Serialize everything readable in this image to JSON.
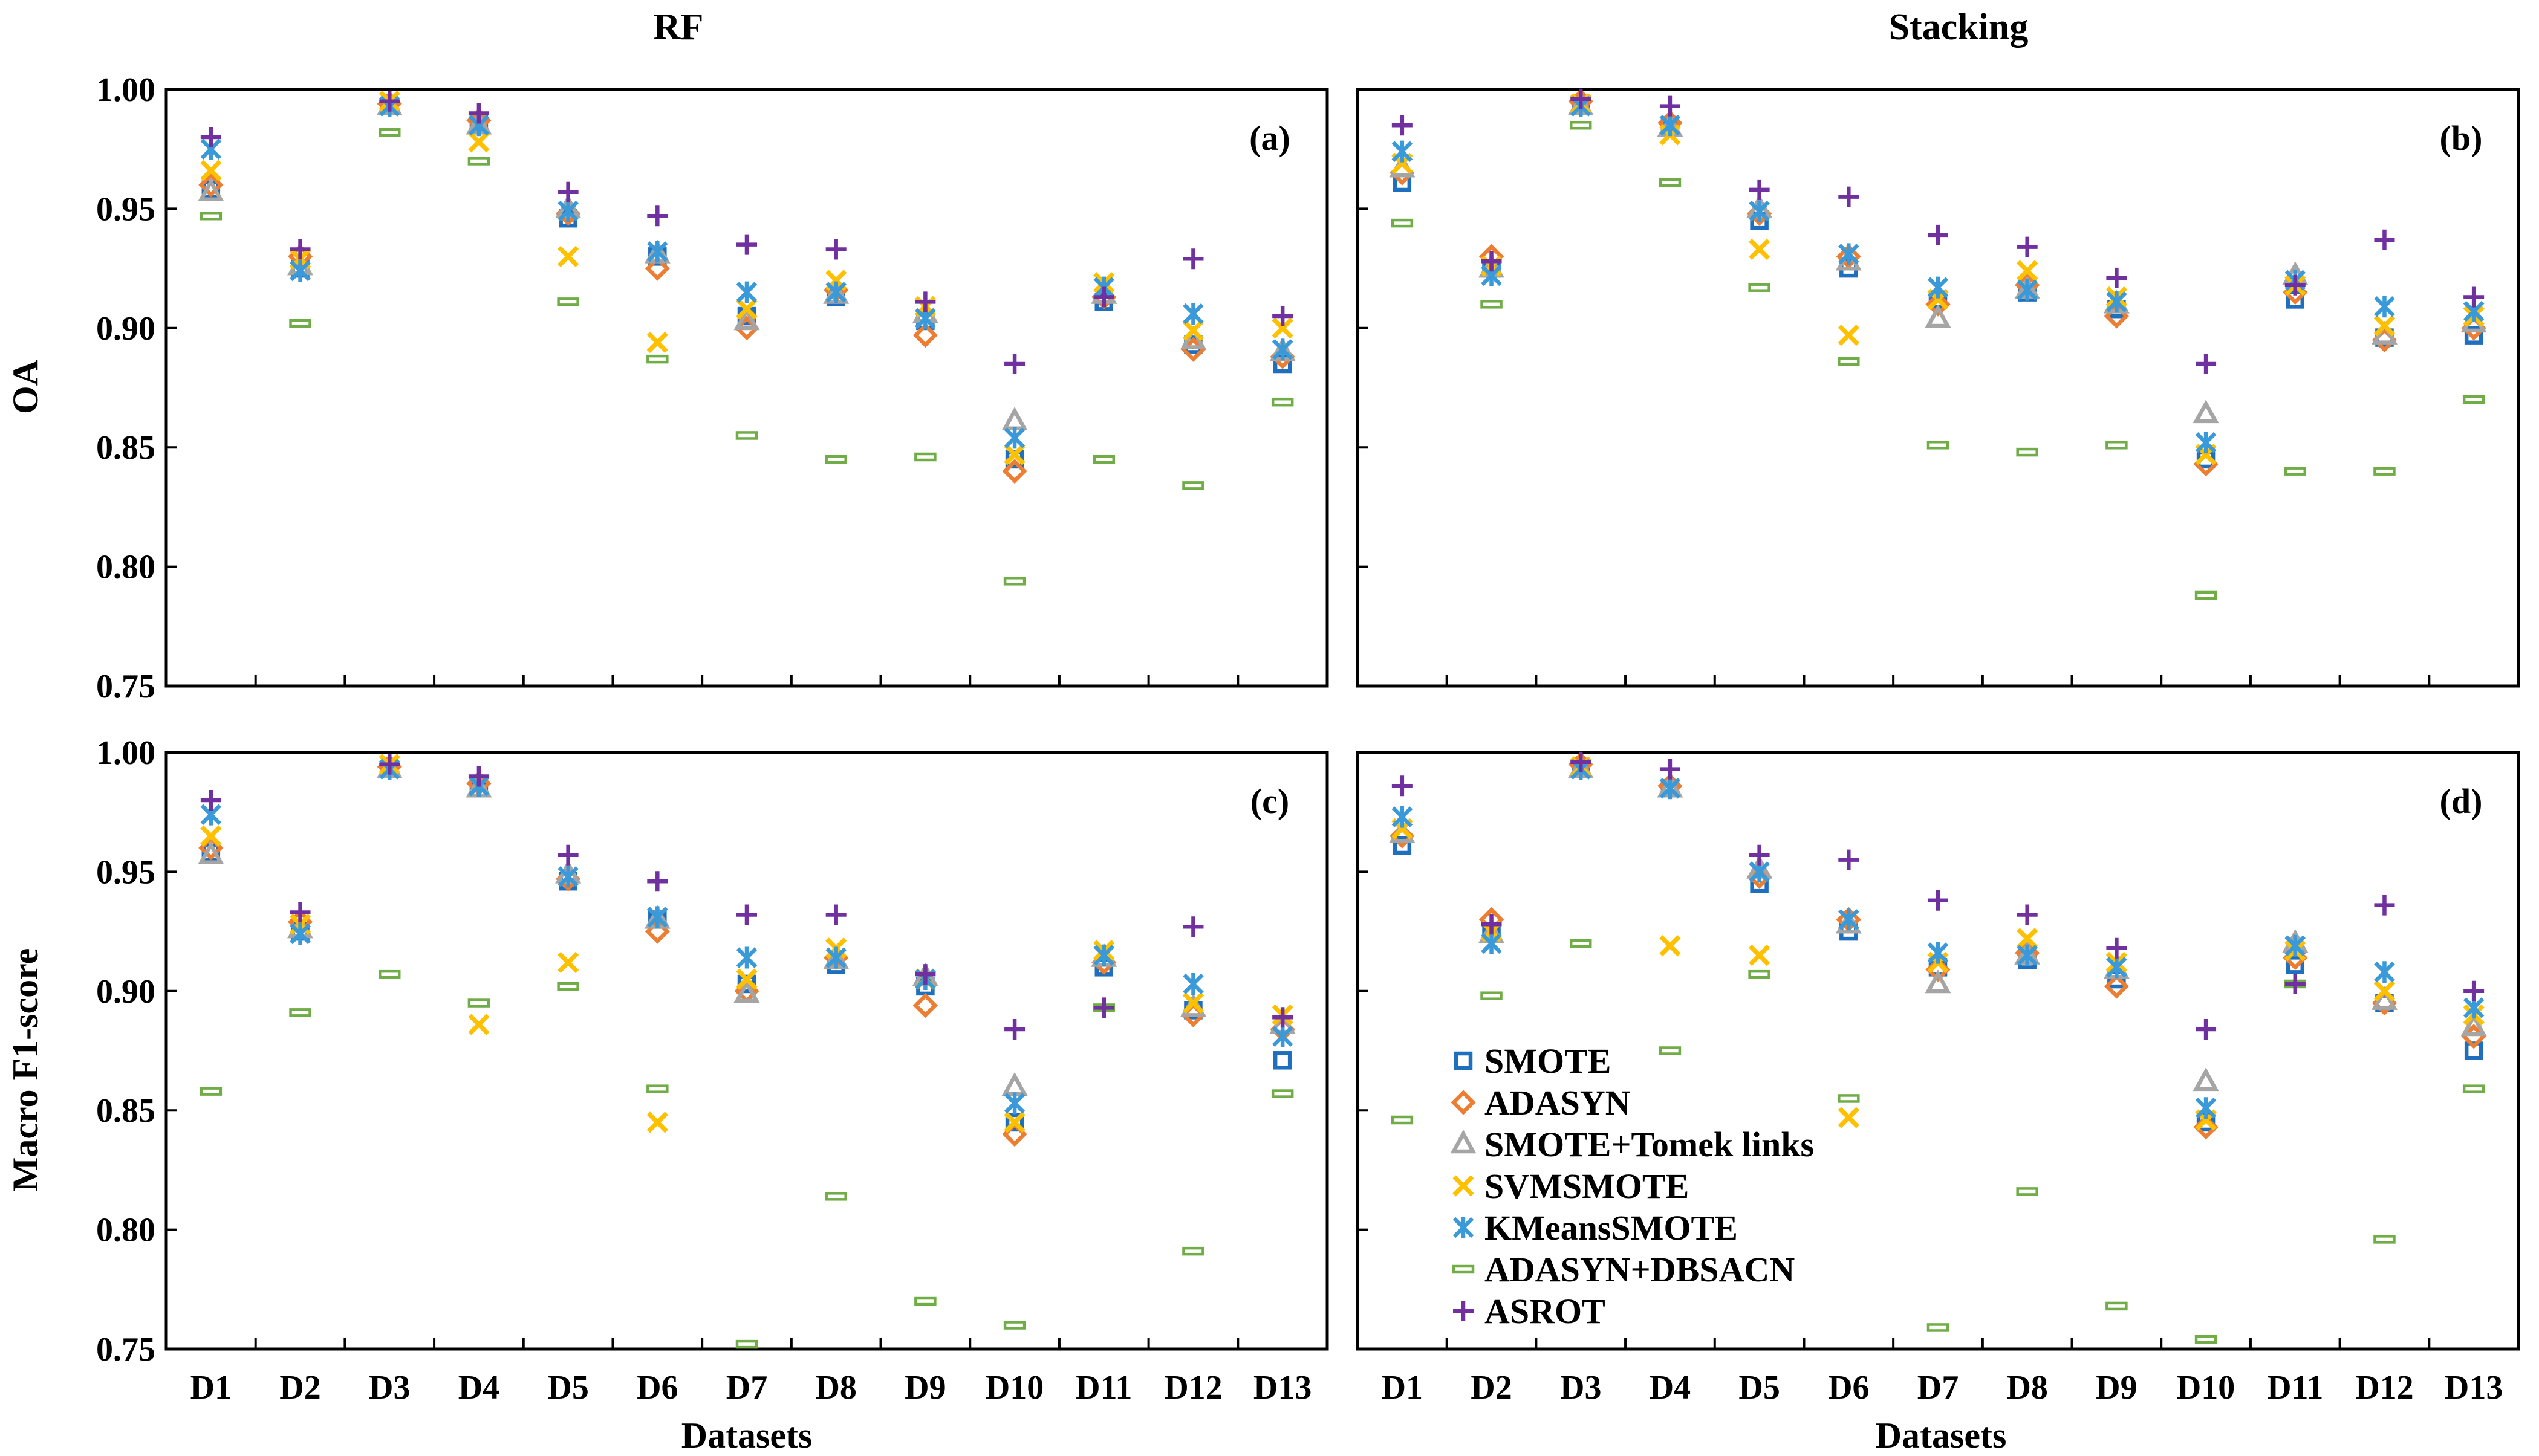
{
  "column_titles": [
    "RF",
    "Stacking"
  ],
  "x_axis_title": "Datasets",
  "y_axis_titles": [
    "OA",
    "Macro F1-score"
  ],
  "chart_data": {
    "type": "scatter",
    "categories": [
      "D1",
      "D2",
      "D3",
      "D4",
      "D5",
      "D6",
      "D7",
      "D8",
      "D9",
      "D10",
      "D11",
      "D12",
      "D13"
    ],
    "xlabel": "Datasets",
    "ylim": [
      0.75,
      1.0
    ],
    "yticks": [
      "0.75",
      "0.80",
      "0.85",
      "0.90",
      "0.95",
      "1.00"
    ],
    "legend": {
      "placement": "bottom-left of panel (d)",
      "entries": [
        {
          "name": "SMOTE",
          "marker": "square",
          "color": "#1f6fbf"
        },
        {
          "name": "ADASYN",
          "marker": "diamond",
          "color": "#ec7d31"
        },
        {
          "name": "SMOTE+Tomek links",
          "marker": "triangle",
          "color": "#a5a5a5"
        },
        {
          "name": "SVMSMOTE",
          "marker": "x",
          "color": "#ffc000"
        },
        {
          "name": "KMeansSMOTE",
          "marker": "asterisk",
          "color": "#3a9ad9"
        },
        {
          "name": "ADASYN+DBSACN",
          "marker": "dash",
          "color": "#70ad47"
        },
        {
          "name": "ASROT",
          "marker": "plus",
          "color": "#7030a0"
        }
      ]
    },
    "panels": [
      {
        "label": "(a)",
        "title": "RF",
        "ylabel": "OA",
        "series": [
          {
            "name": "SMOTE",
            "values": [
              0.958,
              0.925,
              0.993,
              0.986,
              0.946,
              0.93,
              0.905,
              0.913,
              0.903,
              0.845,
              0.911,
              0.893,
              0.885
            ]
          },
          {
            "name": "ADASYN",
            "values": [
              0.96,
              0.93,
              0.994,
              0.987,
              0.948,
              0.925,
              0.9,
              0.916,
              0.897,
              0.84,
              0.913,
              0.891,
              0.888
            ]
          },
          {
            "name": "SMOTE+Tomek links",
            "values": [
              0.957,
              0.926,
              0.993,
              0.985,
              0.95,
              0.931,
              0.903,
              0.914,
              0.906,
              0.861,
              0.914,
              0.895,
              0.89
            ]
          },
          {
            "name": "SVMSMOTE",
            "values": [
              0.966,
              0.929,
              0.995,
              0.978,
              0.93,
              0.894,
              0.908,
              0.92,
              0.909,
              0.847,
              0.919,
              0.899,
              0.9
            ]
          },
          {
            "name": "KMeansSMOTE",
            "values": [
              0.975,
              0.924,
              0.993,
              0.985,
              0.949,
              0.932,
              0.915,
              0.915,
              0.904,
              0.854,
              0.917,
              0.906,
              0.891
            ]
          },
          {
            "name": "ADASYN+DBSACN",
            "values": [
              0.947,
              0.902,
              0.982,
              0.97,
              0.911,
              0.887,
              0.855,
              0.845,
              0.846,
              0.794,
              0.845,
              0.834,
              0.869
            ]
          },
          {
            "name": "ASROT",
            "values": [
              0.98,
              0.933,
              0.995,
              0.99,
              0.957,
              0.947,
              0.935,
              0.933,
              0.911,
              0.885,
              0.913,
              0.929,
              0.905
            ]
          }
        ]
      },
      {
        "label": "(b)",
        "title": "Stacking",
        "ylabel": "",
        "series": [
          {
            "name": "SMOTE",
            "values": [
              0.961,
              0.925,
              0.993,
              0.985,
              0.945,
              0.925,
              0.912,
              0.915,
              0.908,
              0.845,
              0.912,
              0.896,
              0.897
            ]
          },
          {
            "name": "ADASYN",
            "values": [
              0.965,
              0.93,
              0.995,
              0.986,
              0.948,
              0.93,
              0.91,
              0.918,
              0.905,
              0.843,
              0.915,
              0.895,
              0.9
            ]
          },
          {
            "name": "SMOTE+Tomek links",
            "values": [
              0.967,
              0.925,
              0.993,
              0.984,
              0.95,
              0.928,
              0.904,
              0.916,
              0.91,
              0.864,
              0.922,
              0.897,
              0.902
            ]
          },
          {
            "name": "SVMSMOTE",
            "values": [
              0.969,
              0.926,
              0.994,
              0.981,
              0.933,
              0.897,
              0.912,
              0.924,
              0.913,
              0.847,
              0.918,
              0.901,
              0.905
            ]
          },
          {
            "name": "KMeansSMOTE",
            "values": [
              0.974,
              0.922,
              0.993,
              0.985,
              0.949,
              0.931,
              0.917,
              0.916,
              0.911,
              0.852,
              0.92,
              0.909,
              0.907
            ]
          },
          {
            "name": "ADASYN+DBSACN",
            "values": [
              0.944,
              0.91,
              0.985,
              0.961,
              0.917,
              0.886,
              0.851,
              0.848,
              0.851,
              0.788,
              0.84,
              0.84,
              0.87
            ]
          },
          {
            "name": "ASROT",
            "values": [
              0.985,
              0.928,
              0.996,
              0.993,
              0.958,
              0.955,
              0.939,
              0.934,
              0.921,
              0.885,
              0.918,
              0.937,
              0.913
            ]
          }
        ]
      },
      {
        "label": "(c)",
        "title": "",
        "ylabel": "Macro F1-score",
        "series": [
          {
            "name": "SMOTE",
            "values": [
              0.958,
              0.925,
              0.993,
              0.985,
              0.946,
              0.93,
              0.903,
              0.911,
              0.902,
              0.845,
              0.91,
              0.892,
              0.871
            ]
          },
          {
            "name": "ADASYN",
            "values": [
              0.96,
              0.929,
              0.994,
              0.987,
              0.947,
              0.925,
              0.9,
              0.914,
              0.894,
              0.84,
              0.912,
              0.89,
              0.884
            ]
          },
          {
            "name": "SMOTE+Tomek links",
            "values": [
              0.957,
              0.926,
              0.993,
              0.985,
              0.949,
              0.93,
              0.899,
              0.913,
              0.906,
              0.86,
              0.914,
              0.893,
              0.886
            ]
          },
          {
            "name": "SVMSMOTE",
            "values": [
              0.965,
              0.928,
              0.995,
              0.886,
              0.912,
              0.845,
              0.905,
              0.918,
              0.905,
              0.845,
              0.917,
              0.895,
              0.89
            ]
          },
          {
            "name": "KMeansSMOTE",
            "values": [
              0.974,
              0.924,
              0.993,
              0.986,
              0.948,
              0.931,
              0.914,
              0.914,
              0.905,
              0.853,
              0.915,
              0.903,
              0.881
            ]
          },
          {
            "name": "ADASYN+DBSACN",
            "values": [
              0.858,
              0.891,
              0.907,
              0.895,
              0.902,
              0.859,
              0.752,
              0.814,
              0.77,
              0.76,
              0.893,
              0.791,
              0.857
            ]
          },
          {
            "name": "ASROT",
            "values": [
              0.98,
              0.933,
              0.995,
              0.99,
              0.957,
              0.946,
              0.932,
              0.932,
              0.907,
              0.884,
              0.893,
              0.927,
              0.889
            ]
          }
        ]
      },
      {
        "label": "(d)",
        "title": "",
        "ylabel": "",
        "series": [
          {
            "name": "SMOTE",
            "values": [
              0.961,
              0.924,
              0.993,
              0.985,
              0.945,
              0.925,
              0.91,
              0.913,
              0.905,
              0.845,
              0.911,
              0.895,
              0.875
            ]
          },
          {
            "name": "ADASYN",
            "values": [
              0.965,
              0.93,
              0.995,
              0.986,
              0.948,
              0.93,
              0.909,
              0.916,
              0.902,
              0.843,
              0.914,
              0.895,
              0.881
            ]
          },
          {
            "name": "SMOTE+Tomek links",
            "values": [
              0.966,
              0.924,
              0.993,
              0.985,
              0.951,
              0.928,
              0.903,
              0.915,
              0.909,
              0.862,
              0.92,
              0.896,
              0.885
            ]
          },
          {
            "name": "SVMSMOTE",
            "values": [
              0.968,
              0.925,
              0.994,
              0.919,
              0.915,
              0.847,
              0.912,
              0.922,
              0.912,
              0.846,
              0.917,
              0.9,
              0.89
            ]
          },
          {
            "name": "KMeansSMOTE",
            "values": [
              0.973,
              0.92,
              0.993,
              0.985,
              0.95,
              0.93,
              0.916,
              0.915,
              0.91,
              0.851,
              0.919,
              0.908,
              0.893
            ]
          },
          {
            "name": "ADASYN+DBSACN",
            "values": [
              0.846,
              0.898,
              0.92,
              0.875,
              0.907,
              0.855,
              0.759,
              0.816,
              0.768,
              0.754,
              0.903,
              0.796,
              0.859
            ]
          },
          {
            "name": "ASROT",
            "values": [
              0.986,
              0.928,
              0.996,
              0.993,
              0.957,
              0.955,
              0.938,
              0.932,
              0.918,
              0.884,
              0.903,
              0.936,
              0.9
            ]
          }
        ]
      }
    ]
  }
}
